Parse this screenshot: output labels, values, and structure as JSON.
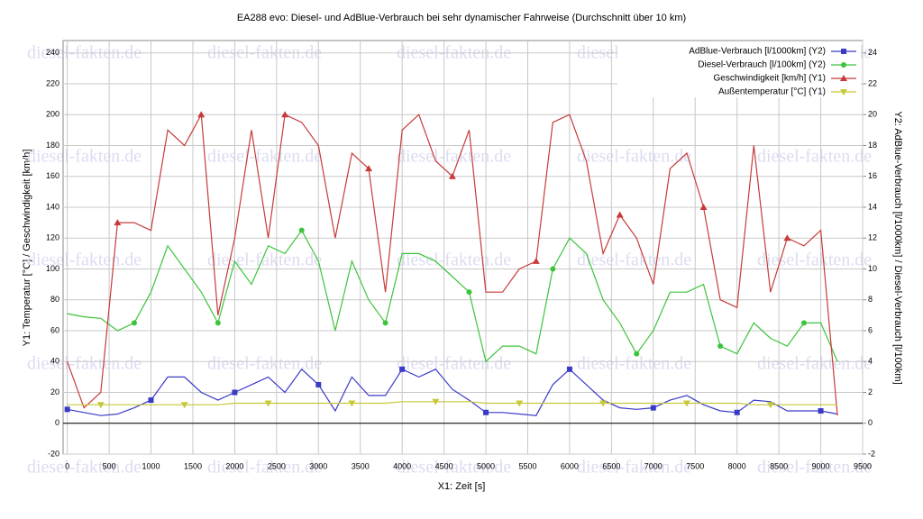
{
  "chart_data": {
    "type": "line",
    "title": "EA288 evo: Diesel- und AdBlue-Verbrauch bei sehr dynamischer Fahrweise (Durchschnitt über 10 km)",
    "watermark": "diesel-fakten.de",
    "xlabel": "X1: Zeit [s]",
    "ylabel": "Y1: Temperatur [°C] / Geschwindigkeit [km/h]",
    "y2label": "Y2: AdBlue-Verbrauch [l/1000km] / Diesel-Verbrauch [l/100km]",
    "xlim": [
      -50,
      9500
    ],
    "xticks": [
      0,
      500,
      1000,
      1500,
      2000,
      2500,
      3000,
      3500,
      4000,
      4500,
      5000,
      5500,
      6000,
      6500,
      7000,
      7500,
      8000,
      8500,
      9000,
      9500
    ],
    "ylim": [
      -20,
      248
    ],
    "yticks": [
      -20,
      0,
      20,
      40,
      60,
      80,
      100,
      120,
      140,
      160,
      180,
      200,
      220,
      240
    ],
    "y2lim": [
      -2,
      24.8
    ],
    "y2ticks": [
      -2,
      0,
      2,
      4,
      6,
      8,
      10,
      12,
      14,
      16,
      18,
      20,
      22,
      24
    ],
    "grid": true,
    "legend": "upper right",
    "x": [
      0,
      200,
      400,
      600,
      800,
      1000,
      1200,
      1400,
      1600,
      1800,
      2000,
      2200,
      2400,
      2600,
      2800,
      3000,
      3200,
      3400,
      3600,
      3800,
      4000,
      4200,
      4400,
      4600,
      4800,
      5000,
      5200,
      5400,
      5600,
      5800,
      6000,
      6200,
      6400,
      6600,
      6800,
      7000,
      7200,
      7400,
      7600,
      7800,
      8000,
      8200,
      8400,
      8600,
      8800,
      9000,
      9200
    ],
    "series": [
      {
        "name": "AdBlue-Verbrauch [l/1000km] (Y2)",
        "color": "#3a3ac8",
        "marker": "square",
        "axis": "y2",
        "values": [
          0.9,
          0.7,
          0.5,
          0.6,
          1.0,
          1.5,
          3.0,
          3.0,
          2.0,
          1.5,
          2.0,
          2.5,
          3.0,
          2.0,
          3.5,
          2.5,
          0.8,
          3.0,
          1.8,
          1.8,
          3.5,
          3.0,
          3.5,
          2.2,
          1.5,
          0.7,
          0.7,
          0.6,
          0.5,
          2.5,
          3.5,
          2.5,
          1.5,
          1.0,
          0.9,
          1.0,
          1.5,
          1.8,
          1.2,
          0.8,
          0.7,
          1.5,
          1.4,
          0.8,
          0.8,
          0.8,
          0.6
        ]
      },
      {
        "name": "Diesel-Verbrauch [l/100km] (Y2)",
        "color": "#3cc43c",
        "marker": "circle",
        "axis": "y2",
        "values": [
          7.1,
          6.9,
          6.8,
          6.0,
          6.5,
          8.5,
          11.5,
          10.0,
          8.5,
          6.5,
          10.5,
          9.0,
          11.5,
          11.0,
          12.5,
          10.5,
          6.0,
          10.5,
          8.0,
          6.5,
          11.0,
          11.0,
          10.5,
          9.5,
          8.5,
          4.0,
          5.0,
          5.0,
          4.5,
          10.0,
          12.0,
          11.0,
          8.0,
          6.5,
          4.5,
          6.0,
          8.5,
          8.5,
          9.0,
          5.0,
          4.5,
          6.5,
          5.5,
          5.0,
          6.5,
          6.5,
          4.0
        ]
      },
      {
        "name": "Geschwindigkeit [km/h] (Y1)",
        "color": "#c83a3a",
        "marker": "triangle-up",
        "values": [
          40,
          10,
          20,
          130,
          130,
          125,
          190,
          180,
          200,
          70,
          120,
          190,
          120,
          200,
          195,
          180,
          120,
          175,
          165,
          85,
          190,
          200,
          170,
          160,
          190,
          85,
          85,
          100,
          105,
          195,
          200,
          170,
          110,
          135,
          120,
          90,
          165,
          175,
          140,
          80,
          75,
          180,
          85,
          120,
          115,
          125,
          5
        ]
      },
      {
        "name": "Außentemperatur [°C] (Y1)",
        "color": "#c8c83a",
        "marker": "triangle-down",
        "values": [
          12,
          12,
          12,
          12,
          12,
          12,
          12,
          12,
          12,
          12,
          13,
          13,
          13,
          13,
          13,
          13,
          13,
          13,
          13,
          13,
          14,
          14,
          14,
          14,
          14,
          13,
          13,
          13,
          13,
          13,
          13,
          13,
          13,
          13,
          13,
          13,
          13,
          13,
          13,
          13,
          13,
          12,
          12,
          12,
          12,
          12,
          12
        ]
      }
    ]
  }
}
